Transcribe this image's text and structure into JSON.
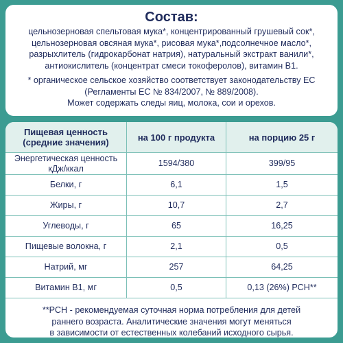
{
  "composition": {
    "title": "Состав:",
    "lines": [
      "цельнозерновая спельтовая мука*, концентрированный грушевый сок*,",
      "цельнозерновая овсяная мука*, рисовая мука*,подсолнечное масло*,",
      "разрыхлитель (гидрокарбонат натрия), натуральный экстракт ванили*,",
      "антиокислитель (концентрат смеси токоферолов), витамин В1."
    ],
    "notes": [
      "* органическое сельское хозяйство соответствует законодательству ЕС",
      "(Регламенты ЕС № 834/2007, № 889/2008).",
      "Может содержать следы яиц, молока, сои и орехов."
    ]
  },
  "nutrition": {
    "headers": [
      "Пищевая ценность\n(средние значения)",
      "на 100 г продукта",
      "на порцию 25 г"
    ],
    "rows": [
      [
        "Энергетическая ценность\nкДж/ккал",
        "1594/380",
        "399/95"
      ],
      [
        "Белки, г",
        "6,1",
        "1,5"
      ],
      [
        "Жиры, г",
        "10,7",
        "2,7"
      ],
      [
        "Углеводы, г",
        "65",
        "16,25"
      ],
      [
        "Пищевые волокна, г",
        "2,1",
        "0,5"
      ],
      [
        "Натрий, мг",
        "257",
        "64,25"
      ],
      [
        "Витамин В1, мг",
        "0,5",
        "0,13 (26%) РСН**"
      ]
    ],
    "footnote": [
      "**РСН - рекомендуемая суточная норма потребления для детей",
      "раннего возраста. Аналитические значения могут меняться",
      "в зависимости от естественных колебаний исходного сырья."
    ]
  }
}
